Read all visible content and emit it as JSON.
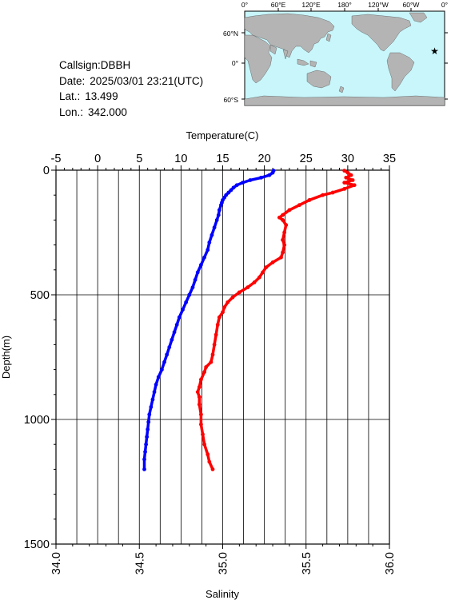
{
  "info": {
    "callsign": "Callsign:DBBH",
    "date_label": "Date:",
    "date_value": "2025/03/01 23:21(UTC)",
    "lat_label": "Lat.:",
    "lat_value": "13.499",
    "lon_label": "Lon.:",
    "lon_value": "342.000"
  },
  "map": {
    "top_ticks": [
      "0°",
      "60°E",
      "120°E",
      "180°",
      "120°W",
      "60°W",
      "0°"
    ],
    "left_ticks": [
      "60°N",
      "0°",
      "60°S"
    ],
    "ocean_color": "#c8f6fb",
    "land_color": "#b4b4b4",
    "marker": {
      "lat": 13.499,
      "lon": 342.0,
      "color": "#ff0000"
    }
  },
  "chart_data": {
    "type": "line",
    "top_axis": {
      "label": "Temperature(C)",
      "range": [
        -5,
        35
      ],
      "ticks": [
        "-5",
        "0",
        "5",
        "10",
        "15",
        "20",
        "25",
        "30",
        "35"
      ]
    },
    "bottom_axis": {
      "label": "Salinity",
      "range": [
        34.0,
        36.0
      ],
      "ticks": [
        "34.0",
        "34.5",
        "35.0",
        "35.5",
        "36.0"
      ]
    },
    "y_axis": {
      "label": "Depth(m)",
      "range": [
        0,
        1500
      ],
      "inverted": true,
      "ticks": [
        "0",
        "500",
        "1000",
        "1500"
      ]
    },
    "grid": true,
    "series": [
      {
        "color": "#0000ff",
        "axis": "temperature",
        "points": [
          [
            21.1,
            2
          ],
          [
            21.0,
            10
          ],
          [
            20.6,
            20
          ],
          [
            19.6,
            30
          ],
          [
            18.3,
            40
          ],
          [
            17.4,
            50
          ],
          [
            16.7,
            60
          ],
          [
            16.3,
            70
          ],
          [
            16.0,
            80
          ],
          [
            15.7,
            90
          ],
          [
            15.4,
            100
          ],
          [
            15.2,
            110
          ],
          [
            15.0,
            120
          ],
          [
            14.9,
            130
          ],
          [
            14.8,
            140
          ],
          [
            14.6,
            160
          ],
          [
            14.5,
            180
          ],
          [
            14.3,
            200
          ],
          [
            14.0,
            230
          ],
          [
            13.7,
            260
          ],
          [
            13.4,
            290
          ],
          [
            13.2,
            320
          ],
          [
            12.8,
            350
          ],
          [
            12.4,
            380
          ],
          [
            12.0,
            410
          ],
          [
            11.7,
            440
          ],
          [
            11.4,
            470
          ],
          [
            11.0,
            500
          ],
          [
            10.6,
            530
          ],
          [
            10.2,
            560
          ],
          [
            9.8,
            590
          ],
          [
            9.5,
            620
          ],
          [
            9.2,
            650
          ],
          [
            8.9,
            680
          ],
          [
            8.6,
            710
          ],
          [
            8.3,
            740
          ],
          [
            8.0,
            770
          ],
          [
            7.7,
            800
          ],
          [
            7.3,
            830
          ],
          [
            7.0,
            860
          ],
          [
            6.8,
            890
          ],
          [
            6.6,
            920
          ],
          [
            6.4,
            950
          ],
          [
            6.2,
            980
          ],
          [
            6.1,
            1010
          ],
          [
            6.0,
            1040
          ],
          [
            5.9,
            1070
          ],
          [
            5.8,
            1100
          ],
          [
            5.7,
            1130
          ],
          [
            5.6,
            1160
          ],
          [
            5.6,
            1200
          ]
        ]
      },
      {
        "color": "#ff0000",
        "axis": "salinity",
        "points": [
          [
            35.73,
            2
          ],
          [
            35.75,
            10
          ],
          [
            35.77,
            20
          ],
          [
            35.74,
            30
          ],
          [
            35.78,
            40
          ],
          [
            35.73,
            50
          ],
          [
            35.79,
            60
          ],
          [
            35.73,
            75
          ],
          [
            35.66,
            90
          ],
          [
            35.6,
            100
          ],
          [
            35.52,
            120
          ],
          [
            35.46,
            140
          ],
          [
            35.4,
            160
          ],
          [
            35.36,
            180
          ],
          [
            35.34,
            190
          ],
          [
            35.36,
            200
          ],
          [
            35.38,
            220
          ],
          [
            35.37,
            250
          ],
          [
            35.36,
            280
          ],
          [
            35.37,
            300
          ],
          [
            35.36,
            330
          ],
          [
            35.35,
            350
          ],
          [
            35.3,
            370
          ],
          [
            35.26,
            390
          ],
          [
            35.24,
            410
          ],
          [
            35.22,
            430
          ],
          [
            35.19,
            450
          ],
          [
            35.15,
            470
          ],
          [
            35.1,
            490
          ],
          [
            35.06,
            510
          ],
          [
            35.03,
            530
          ],
          [
            35.01,
            550
          ],
          [
            35.0,
            570
          ],
          [
            34.98,
            590
          ],
          [
            34.97,
            620
          ],
          [
            34.96,
            660
          ],
          [
            34.95,
            700
          ],
          [
            34.94,
            740
          ],
          [
            34.93,
            770
          ],
          [
            34.9,
            790
          ],
          [
            34.89,
            810
          ],
          [
            34.87,
            840
          ],
          [
            34.86,
            870
          ],
          [
            34.85,
            890
          ],
          [
            34.86,
            910
          ],
          [
            34.86,
            940
          ],
          [
            34.87,
            980
          ],
          [
            34.87,
            1020
          ],
          [
            34.88,
            1060
          ],
          [
            34.89,
            1100
          ],
          [
            34.91,
            1140
          ],
          [
            34.92,
            1170
          ],
          [
            34.94,
            1200
          ]
        ]
      }
    ]
  }
}
